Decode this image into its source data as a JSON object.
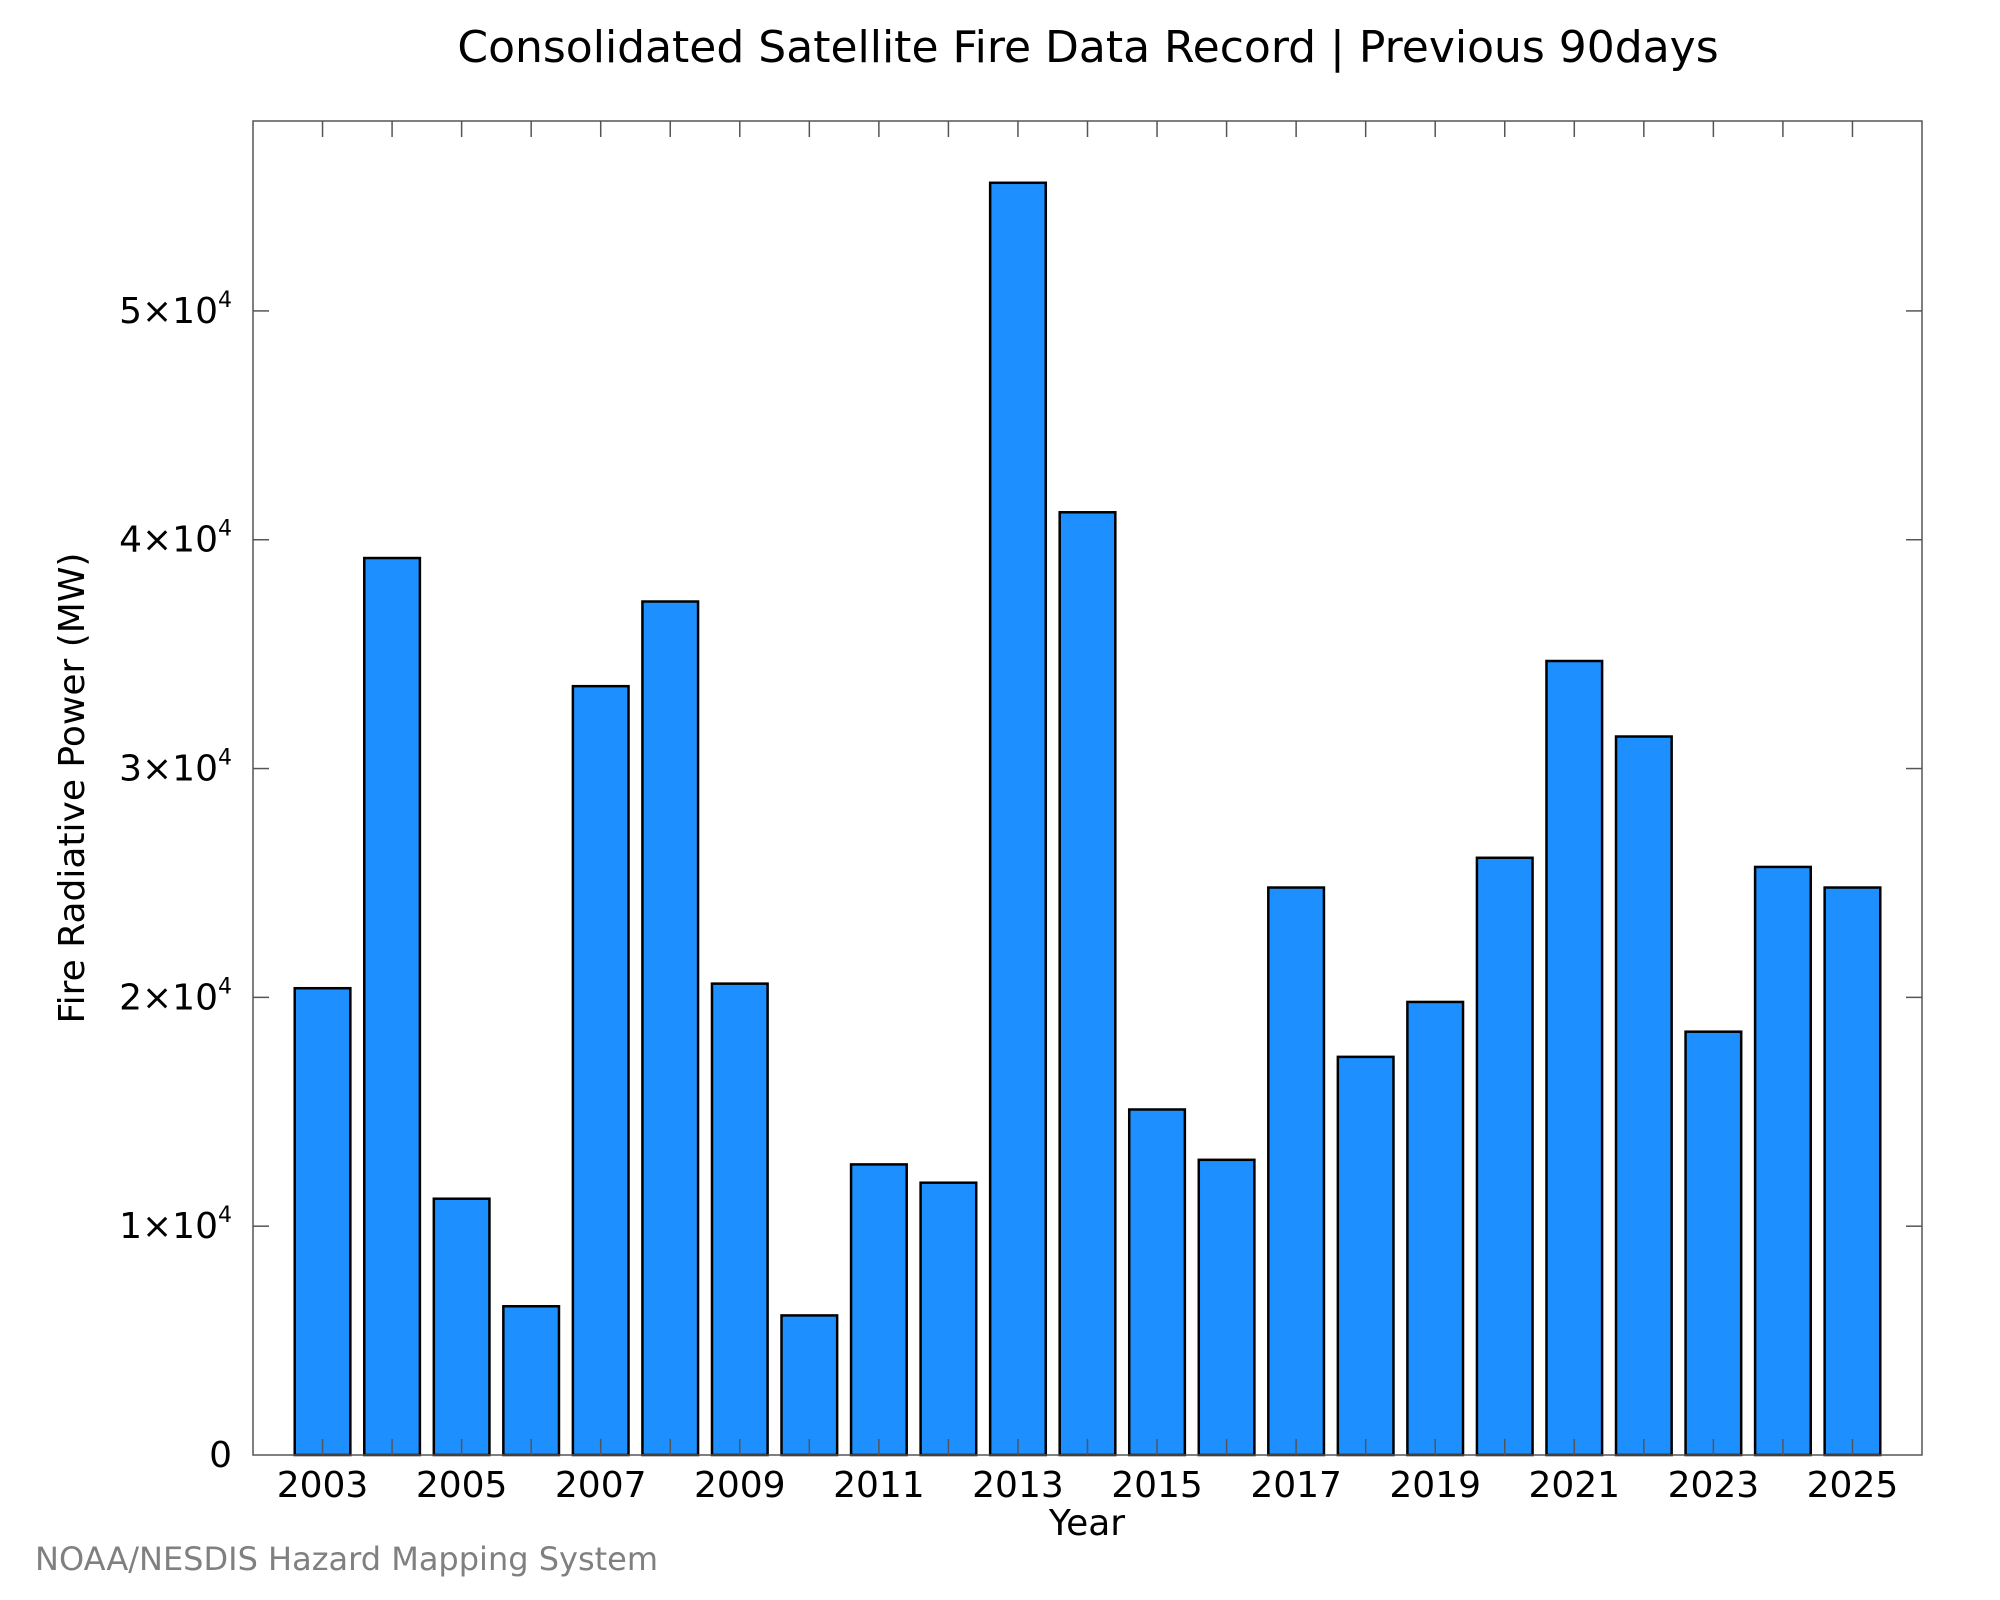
{
  "credit": "NOAA/NESDIS Hazard Mapping System",
  "chart_data": {
    "type": "bar",
    "title": "Consolidated Satellite Fire Data Record | Previous 90days",
    "xlabel": "Year",
    "ylabel": "Fire Radiative Power (MW)",
    "categories": [
      "2003",
      "2004",
      "2005",
      "2006",
      "2007",
      "2008",
      "2009",
      "2010",
      "2011",
      "2012",
      "2013",
      "2014",
      "2015",
      "2016",
      "2017",
      "2018",
      "2019",
      "2020",
      "2021",
      "2022",
      "2023",
      "2024",
      "2025"
    ],
    "values": [
      20400,
      39200,
      11200,
      6500,
      33600,
      37300,
      20600,
      6100,
      12700,
      11900,
      55600,
      41200,
      15100,
      12900,
      24800,
      17400,
      19800,
      26100,
      34700,
      31400,
      18500,
      25700,
      24800
    ],
    "x_tick_labels": [
      "2003",
      "2005",
      "2007",
      "2009",
      "2011",
      "2013",
      "2015",
      "2017",
      "2019",
      "2021",
      "2023",
      "2025"
    ],
    "y_ticks": [
      {
        "value": 0,
        "mantissa": "0",
        "exponent": ""
      },
      {
        "value": 10000,
        "mantissa": "1×10",
        "exponent": "4"
      },
      {
        "value": 20000,
        "mantissa": "2×10",
        "exponent": "4"
      },
      {
        "value": 30000,
        "mantissa": "3×10",
        "exponent": "4"
      },
      {
        "value": 40000,
        "mantissa": "4×10",
        "exponent": "4"
      },
      {
        "value": 50000,
        "mantissa": "5×10",
        "exponent": "4"
      }
    ],
    "ylim": [
      0,
      58300
    ],
    "xlim": [
      2002.0,
      2026.0
    ],
    "bar_color": "#1e8fff",
    "edge_color": "#000000",
    "grid": false,
    "legend": "none"
  }
}
